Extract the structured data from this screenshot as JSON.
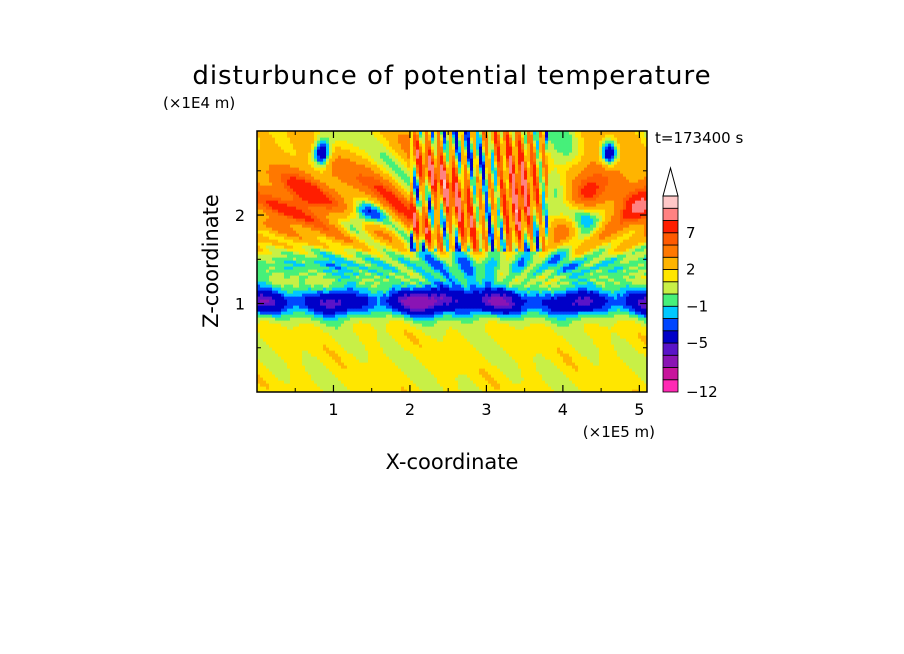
{
  "chart_data": {
    "type": "heatmap",
    "title": "disturbunce of potential temperature",
    "xlabel": "X-coordinate",
    "ylabel": "Z-coordinate",
    "x_unit": "(×1E5 m)",
    "y_unit": "(×1E4 m)",
    "time_label": "t=173400 s",
    "xlim": [
      0.0,
      5.1
    ],
    "ylim": [
      0.0,
      2.95
    ],
    "x_ticks": [
      {
        "value": 1,
        "label": "1"
      },
      {
        "value": 2,
        "label": "2"
      },
      {
        "value": 3,
        "label": "3"
      },
      {
        "value": 4,
        "label": "4"
      },
      {
        "value": 5,
        "label": "5"
      }
    ],
    "y_ticks": [
      {
        "value": 1,
        "label": "1"
      },
      {
        "value": 2,
        "label": "2"
      }
    ],
    "colorbar": {
      "levels_bottom_to_top": [
        -12,
        -10,
        -8,
        -6,
        -5,
        -3,
        -2,
        -1,
        0,
        1,
        2,
        4,
        6,
        7,
        9,
        11
      ],
      "level_colors": [
        "#ff2ab4",
        "#c8149c",
        "#8a14b4",
        "#5a14c8",
        "#0000c8",
        "#0046ff",
        "#00c8ff",
        "#46f07a",
        "#c8f046",
        "#ffe600",
        "#ffb400",
        "#ff7800",
        "#ff5a00",
        "#ff1e00",
        "#ff8282",
        "#ffc8c8"
      ],
      "labels": [
        {
          "value": -12,
          "label": "−12"
        },
        {
          "value": -5,
          "label": "−5"
        },
        {
          "value": -1,
          "label": "−1"
        },
        {
          "value": 2,
          "label": "2"
        },
        {
          "value": 7,
          "label": "7"
        }
      ],
      "extend_top": true
    },
    "features": [
      {
        "kind": "band",
        "z_range": [
          0.75,
          1.35
        ],
        "value": -5,
        "desc": "deep negative layer"
      },
      {
        "kind": "band",
        "z_range": [
          1.35,
          1.75
        ],
        "value": -1,
        "desc": "cyan/green layer"
      },
      {
        "kind": "wave_beam",
        "origin_x": 2.9,
        "value": 4,
        "desc": "diverging gravity-wave beams"
      },
      {
        "kind": "near_surface",
        "z_range": [
          0.0,
          0.7
        ],
        "value": 1,
        "desc": "yellow/green mixed layer"
      }
    ]
  }
}
